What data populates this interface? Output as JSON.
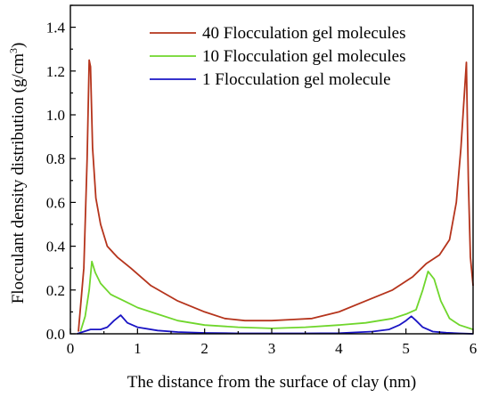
{
  "chart_data": {
    "type": "line",
    "title": "",
    "xlabel": "The distance from the surface of clay (nm)",
    "ylabel": "Flocculant density distribution (g/cm",
    "ylabel_sup": "3",
    "ylabel_close": ")",
    "xlim": [
      0,
      6
    ],
    "ylim": [
      0,
      1.5
    ],
    "xticks": [
      "0",
      "1",
      "2",
      "3",
      "4",
      "5",
      "6"
    ],
    "yticks": [
      "0.0",
      "0.2",
      "0.4",
      "0.6",
      "0.8",
      "1.0",
      "1.2",
      "1.4"
    ],
    "grid": false,
    "legend_position": "top-right",
    "series": [
      {
        "name": "40 Flocculation gel molecules",
        "color": "#b5341c",
        "x": [
          0.12,
          0.2,
          0.25,
          0.28,
          0.3,
          0.33,
          0.38,
          0.45,
          0.55,
          0.7,
          0.9,
          1.2,
          1.6,
          2.0,
          2.3,
          2.6,
          3.0,
          3.3,
          3.6,
          4.0,
          4.4,
          4.8,
          5.1,
          5.3,
          5.5,
          5.65,
          5.75,
          5.82,
          5.86,
          5.9,
          5.93,
          5.96,
          6.0
        ],
        "y": [
          0.01,
          0.3,
          0.8,
          1.25,
          1.22,
          0.85,
          0.62,
          0.5,
          0.4,
          0.35,
          0.3,
          0.22,
          0.15,
          0.1,
          0.07,
          0.06,
          0.06,
          0.065,
          0.07,
          0.1,
          0.15,
          0.2,
          0.26,
          0.32,
          0.36,
          0.43,
          0.6,
          0.85,
          1.05,
          1.24,
          0.7,
          0.35,
          0.22
        ]
      },
      {
        "name": "10 Flocculation gel molecules",
        "color": "#6fd62c",
        "x": [
          0.15,
          0.22,
          0.28,
          0.32,
          0.37,
          0.45,
          0.6,
          0.8,
          1.0,
          1.3,
          1.6,
          2.0,
          2.5,
          3.0,
          3.5,
          4.0,
          4.4,
          4.8,
          5.0,
          5.15,
          5.25,
          5.33,
          5.42,
          5.52,
          5.65,
          5.8,
          6.0
        ],
        "y": [
          0.01,
          0.08,
          0.2,
          0.33,
          0.28,
          0.23,
          0.18,
          0.15,
          0.12,
          0.09,
          0.06,
          0.04,
          0.03,
          0.025,
          0.03,
          0.04,
          0.05,
          0.07,
          0.09,
          0.11,
          0.2,
          0.285,
          0.25,
          0.15,
          0.07,
          0.04,
          0.02
        ]
      },
      {
        "name": "1 Flocculation gel molecule",
        "color": "#1a14c4",
        "x": [
          0.1,
          0.2,
          0.3,
          0.45,
          0.55,
          0.65,
          0.75,
          0.85,
          1.0,
          1.3,
          1.6,
          2.0,
          2.5,
          3.0,
          3.5,
          4.0,
          4.5,
          4.75,
          4.9,
          5.0,
          5.08,
          5.15,
          5.25,
          5.4,
          5.6,
          5.8,
          6.0
        ],
        "y": [
          0.0,
          0.01,
          0.02,
          0.02,
          0.03,
          0.06,
          0.085,
          0.05,
          0.03,
          0.015,
          0.008,
          0.004,
          0.002,
          0.002,
          0.002,
          0.003,
          0.01,
          0.02,
          0.04,
          0.06,
          0.08,
          0.06,
          0.03,
          0.01,
          0.005,
          0.002,
          0.0
        ]
      }
    ]
  }
}
